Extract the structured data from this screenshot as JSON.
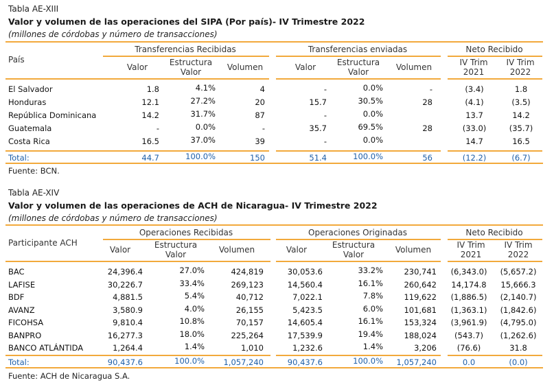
{
  "table1": {
    "number": "Tabla AE-XIII",
    "title": "Valor y volumen de las operaciones del SIPA (Por país)- IV Trimestre 2022",
    "subtitle": "(millones de córdobas y número de transacciones)",
    "row_header": "País",
    "groups": [
      "Transferencias Recibidas",
      "Transferencias enviadas",
      "Neto Recibido"
    ],
    "cols": {
      "valor": "Valor",
      "estructura1": "Estructura",
      "estructura2": "Valor",
      "volumen": "Volumen",
      "q2021a": "IV Trim",
      "q2021b": "2021",
      "q2022a": "IV Trim",
      "q2022b": "2022"
    },
    "rows": [
      {
        "name": "El Salvador",
        "rv": "1.8",
        "re": "4.1%",
        "rn": "4",
        "ev": "-",
        "ee": "0.0%",
        "en": "-",
        "n21": "(3.4)",
        "n22": "1.8"
      },
      {
        "name": "Honduras",
        "rv": "12.1",
        "re": "27.2%",
        "rn": "20",
        "ev": "15.7",
        "ee": "30.5%",
        "en": "28",
        "n21": "(4.1)",
        "n22": "(3.5)"
      },
      {
        "name": "República Dominicana",
        "rv": "14.2",
        "re": "31.7%",
        "rn": "87",
        "ev": "-",
        "ee": "0.0%",
        "en": "",
        "n21": "13.7",
        "n22": "14.2"
      },
      {
        "name": "Guatemala",
        "rv": "-",
        "re": "0.0%",
        "rn": "-",
        "ev": "35.7",
        "ee": "69.5%",
        "en": "28",
        "n21": "(33.0)",
        "n22": "(35.7)"
      },
      {
        "name": "Costa Rica",
        "rv": "16.5",
        "re": "37.0%",
        "rn": "39",
        "ev": "-",
        "ee": "0.0%",
        "en": "",
        "n21": "14.7",
        "n22": "16.5"
      }
    ],
    "total": {
      "name": "Total:",
      "rv": "44.7",
      "re": "100.0%",
      "rn": "150",
      "ev": "51.4",
      "ee": "100.0%",
      "en": "56",
      "n21": "(12.2)",
      "n22": "(6.7)"
    },
    "source": "Fuente: BCN."
  },
  "table2": {
    "number": "Tabla AE-XIV",
    "title": "Valor y volumen de las operaciones de ACH de Nicaragua- IV Trimestre 2022",
    "subtitle": "(millones de córdobas y número de transacciones)",
    "row_header": "Participante  ACH",
    "groups": [
      "Operaciones Recibidas",
      "Operaciones Originadas",
      "Neto Recibido"
    ],
    "cols": {
      "valor": "Valor",
      "estructura1": "Estructura",
      "estructura2": "Valor",
      "volumen": "Volumen",
      "q2021a": "IV Trim",
      "q2021b": "2021",
      "q2022a": "IV Trim",
      "q2022b": "2022"
    },
    "rows": [
      {
        "name": "BAC",
        "rv": "24,396.4",
        "re": "27.0%",
        "rn": "424,819",
        "ev": "30,053.6",
        "ee": "33.2%",
        "en": "230,741",
        "n21": "(6,343.0)",
        "n22": "(5,657.2)"
      },
      {
        "name": "LAFISE",
        "rv": "30,226.7",
        "re": "33.4%",
        "rn": "269,123",
        "ev": "14,560.4",
        "ee": "16.1%",
        "en": "260,642",
        "n21": "14,174.8",
        "n22": "15,666.3"
      },
      {
        "name": "BDF",
        "rv": "4,881.5",
        "re": "5.4%",
        "rn": "40,712",
        "ev": "7,022.1",
        "ee": "7.8%",
        "en": "119,622",
        "n21": "(1,886.5)",
        "n22": "(2,140.7)"
      },
      {
        "name": "AVANZ",
        "rv": "3,580.9",
        "re": "4.0%",
        "rn": "26,155",
        "ev": "5,423.5",
        "ee": "6.0%",
        "en": "101,681",
        "n21": "(1,363.1)",
        "n22": "(1,842.6)"
      },
      {
        "name": "FICOHSA",
        "rv": "9,810.4",
        "re": "10.8%",
        "rn": "70,157",
        "ev": "14,605.4",
        "ee": "16.1%",
        "en": "153,324",
        "n21": "(3,961.9)",
        "n22": "(4,795.0)"
      },
      {
        "name": "BANPRO",
        "rv": "16,277.3",
        "re": "18.0%",
        "rn": "225,264",
        "ev": "17,539.9",
        "ee": "19.4%",
        "en": "188,024",
        "n21": "(543.7)",
        "n22": "(1,262.6)"
      },
      {
        "name": "BANCO ATLÁNTIDA",
        "rv": "1,264.4",
        "re": "1.4%",
        "rn": "1,010",
        "ev": "1,232.6",
        "ee": "1.4%",
        "en": "3,206",
        "n21": "(76.6)",
        "n22": "31.8"
      }
    ],
    "total": {
      "name": "Total:",
      "rv": "90,437.6",
      "re": "100.0%",
      "rn": "1,057,240",
      "ev": "90,437.6",
      "ee": "100.0%",
      "en": "1,057,240",
      "n21": "0.0",
      "n22": "(0.0)"
    },
    "source": "Fuente: ACH de Nicaragua S.A."
  },
  "colors": {
    "rule": "#F2A93B",
    "total_text": "#1F5FA8"
  }
}
